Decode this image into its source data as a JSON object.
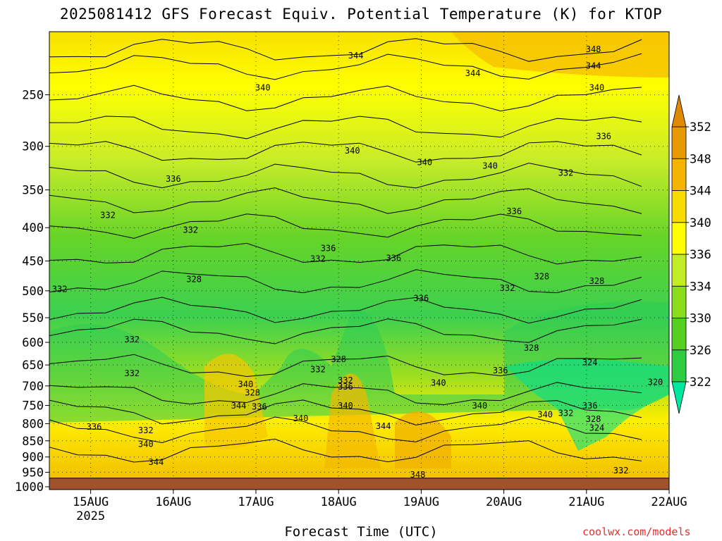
{
  "title": "2025081412 GFS Forecast Equiv. Potential Temperature (K) for KTOP",
  "credit": "coolwx.com/models",
  "chart_data": {
    "type": "heatmap",
    "title": "2025081412 GFS Forecast Equiv. Potential Temperature (K) for KTOP",
    "xlabel": "Forecast Time (UTC)",
    "ylabel": "",
    "x_ticks": [
      {
        "label": "15AUG",
        "sublabel": "2025",
        "t": 12
      },
      {
        "label": "16AUG",
        "t": 36
      },
      {
        "label": "17AUG",
        "t": 60
      },
      {
        "label": "18AUG",
        "t": 84
      },
      {
        "label": "19AUG",
        "t": 108
      },
      {
        "label": "20AUG",
        "t": 132
      },
      {
        "label": "21AUG",
        "t": 156
      },
      {
        "label": "22AUG",
        "t": 180
      }
    ],
    "x_range_hours": [
      0,
      180
    ],
    "y_levels_hPa": [
      250,
      300,
      350,
      400,
      450,
      500,
      550,
      600,
      650,
      700,
      750,
      800,
      850,
      900,
      950,
      1000
    ],
    "y_range_hPa": [
      200,
      1010
    ],
    "y_scale": "log-pressure",
    "grid": true,
    "colorbar": {
      "levels": [
        322,
        326,
        330,
        334,
        336,
        340,
        344,
        348,
        352
      ],
      "colors": [
        "#00e090",
        "#2ecc40",
        "#55d020",
        "#8cdc1e",
        "#c2ec24",
        "#ffff00",
        "#f8dc00",
        "#f4b400",
        "#e89800"
      ],
      "under_color": "#00e8a0",
      "over_color": "#e08800"
    },
    "contour_labels": [
      {
        "text": "344",
        "t": 89,
        "p": 218
      },
      {
        "text": "348",
        "t": 158,
        "p": 213
      },
      {
        "text": "344",
        "t": 123,
        "p": 232
      },
      {
        "text": "344",
        "t": 158,
        "p": 226
      },
      {
        "text": "340",
        "t": 62,
        "p": 244
      },
      {
        "text": "340",
        "t": 159,
        "p": 244
      },
      {
        "text": "336",
        "t": 161,
        "p": 290
      },
      {
        "text": "340",
        "t": 88,
        "p": 305
      },
      {
        "text": "340",
        "t": 109,
        "p": 318
      },
      {
        "text": "340",
        "t": 128,
        "p": 322
      },
      {
        "text": "336",
        "t": 36,
        "p": 337
      },
      {
        "text": "332",
        "t": 150,
        "p": 330
      },
      {
        "text": "336",
        "t": 135,
        "p": 378
      },
      {
        "text": "332",
        "t": 17,
        "p": 383
      },
      {
        "text": "332",
        "t": 41,
        "p": 404
      },
      {
        "text": "336",
        "t": 81,
        "p": 431
      },
      {
        "text": "332",
        "t": 78,
        "p": 447
      },
      {
        "text": "336",
        "t": 100,
        "p": 446
      },
      {
        "text": "328",
        "t": 42,
        "p": 481
      },
      {
        "text": "328",
        "t": 143,
        "p": 476
      },
      {
        "text": "328",
        "t": 159,
        "p": 484
      },
      {
        "text": "332",
        "t": 133,
        "p": 496
      },
      {
        "text": "332",
        "t": 3,
        "p": 498
      },
      {
        "text": "336",
        "t": 108,
        "p": 514
      },
      {
        "text": "332",
        "t": 24,
        "p": 595
      },
      {
        "text": "328",
        "t": 140,
        "p": 613
      },
      {
        "text": "332",
        "t": 24,
        "p": 670
      },
      {
        "text": "328",
        "t": 84,
        "p": 638
      },
      {
        "text": "332",
        "t": 78,
        "p": 661
      },
      {
        "text": "324",
        "t": 157,
        "p": 645
      },
      {
        "text": "336",
        "t": 131,
        "p": 664
      },
      {
        "text": "340",
        "t": 57,
        "p": 697
      },
      {
        "text": "340",
        "t": 113,
        "p": 693
      },
      {
        "text": "332",
        "t": 86,
        "p": 687
      },
      {
        "text": "336",
        "t": 86,
        "p": 703
      },
      {
        "text": "320",
        "t": 176,
        "p": 692
      },
      {
        "text": "328",
        "t": 59,
        "p": 718
      },
      {
        "text": "336",
        "t": 61,
        "p": 755
      },
      {
        "text": "344",
        "t": 55,
        "p": 752
      },
      {
        "text": "340",
        "t": 86,
        "p": 752
      },
      {
        "text": "340",
        "t": 125,
        "p": 752
      },
      {
        "text": "340",
        "t": 144,
        "p": 776
      },
      {
        "text": "332",
        "t": 150,
        "p": 772
      },
      {
        "text": "336",
        "t": 157,
        "p": 752
      },
      {
        "text": "328",
        "t": 158,
        "p": 788
      },
      {
        "text": "340",
        "t": 73,
        "p": 786
      },
      {
        "text": "344",
        "t": 97,
        "p": 808
      },
      {
        "text": "336",
        "t": 13,
        "p": 810
      },
      {
        "text": "332",
        "t": 28,
        "p": 820
      },
      {
        "text": "324",
        "t": 159,
        "p": 813
      },
      {
        "text": "340",
        "t": 28,
        "p": 861
      },
      {
        "text": "344",
        "t": 31,
        "p": 918
      },
      {
        "text": "348",
        "t": 107,
        "p": 960
      },
      {
        "text": "332",
        "t": 166,
        "p": 945
      }
    ]
  },
  "icons": {
    "colorbar_top": "triangle-up",
    "colorbar_bottom": "triangle-down"
  }
}
